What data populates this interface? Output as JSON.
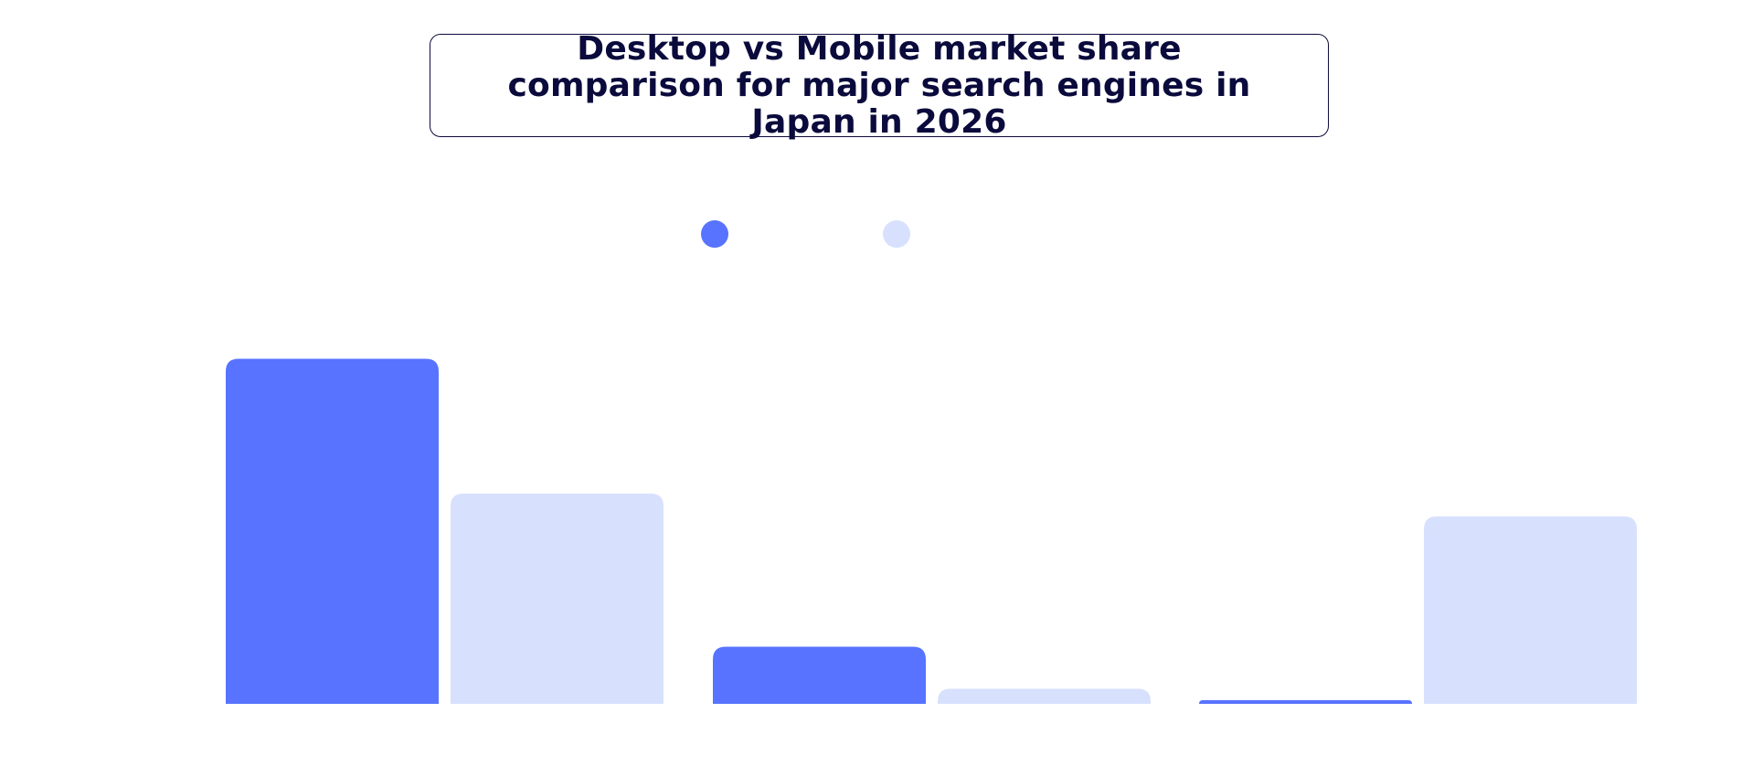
{
  "chart_data": {
    "type": "bar",
    "title": "Desktop vs Mobile market share comparison for major search engines in Japan in 2026",
    "categories": [
      "",
      "",
      ""
    ],
    "series": [
      {
        "name": "",
        "values": [
          75.5,
          12.5,
          0.8
        ],
        "color": "#5773ff"
      },
      {
        "name": "",
        "values": [
          46.0,
          3.3,
          41.0
        ],
        "color": "#d7e1fe"
      }
    ],
    "ylim": [
      0,
      100
    ],
    "grid": false,
    "legend": "top-center"
  }
}
